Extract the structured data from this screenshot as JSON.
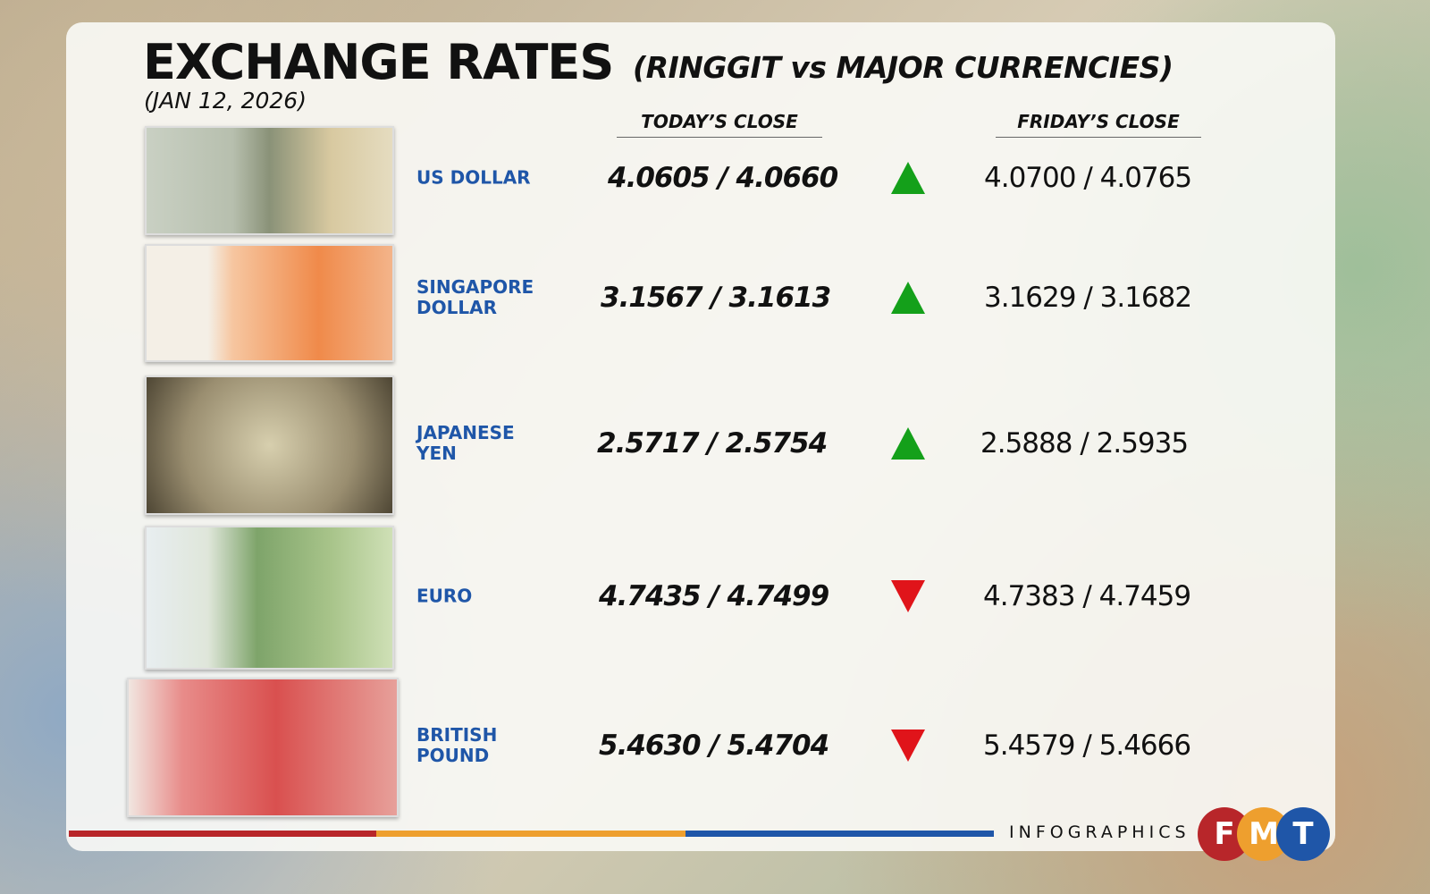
{
  "header": {
    "title": "EXCHANGE RATES",
    "subtitle": "(RINGGIT vs MAJOR CURRENCIES)",
    "date": "(JAN 12, 2026)"
  },
  "columns": {
    "today": "TODAY’S CLOSE",
    "friday": "FRIDAY’S CLOSE"
  },
  "rows": [
    {
      "currency": "US DOLLAR",
      "today": "4.0605 / 4.0660",
      "trend": "up",
      "friday": "4.0700 / 4.0765"
    },
    {
      "currency": "SINGAPORE DOLLAR",
      "today": "3.1567 / 3.1613",
      "trend": "up",
      "friday": "3.1629 / 3.1682"
    },
    {
      "currency": "JAPANESE YEN",
      "today": "2.5717 / 2.5754",
      "trend": "up",
      "friday": "2.5888 / 2.5935"
    },
    {
      "currency": "EURO",
      "today": "4.7435 / 4.7499",
      "trend": "down",
      "friday": "4.7383 / 4.7459"
    },
    {
      "currency": "BRITISH POUND",
      "today": "5.4630 / 5.4704",
      "trend": "down",
      "friday": "5.4579 / 5.4666"
    }
  ],
  "colors": {
    "up": "#14a01a",
    "down": "#e0141a",
    "red": "#b8262a",
    "orange": "#ee9f2e",
    "blue": "#1f56a8"
  },
  "footer": {
    "label": "INFOGRAPHICS",
    "logo": [
      "F",
      "M",
      "T"
    ]
  }
}
